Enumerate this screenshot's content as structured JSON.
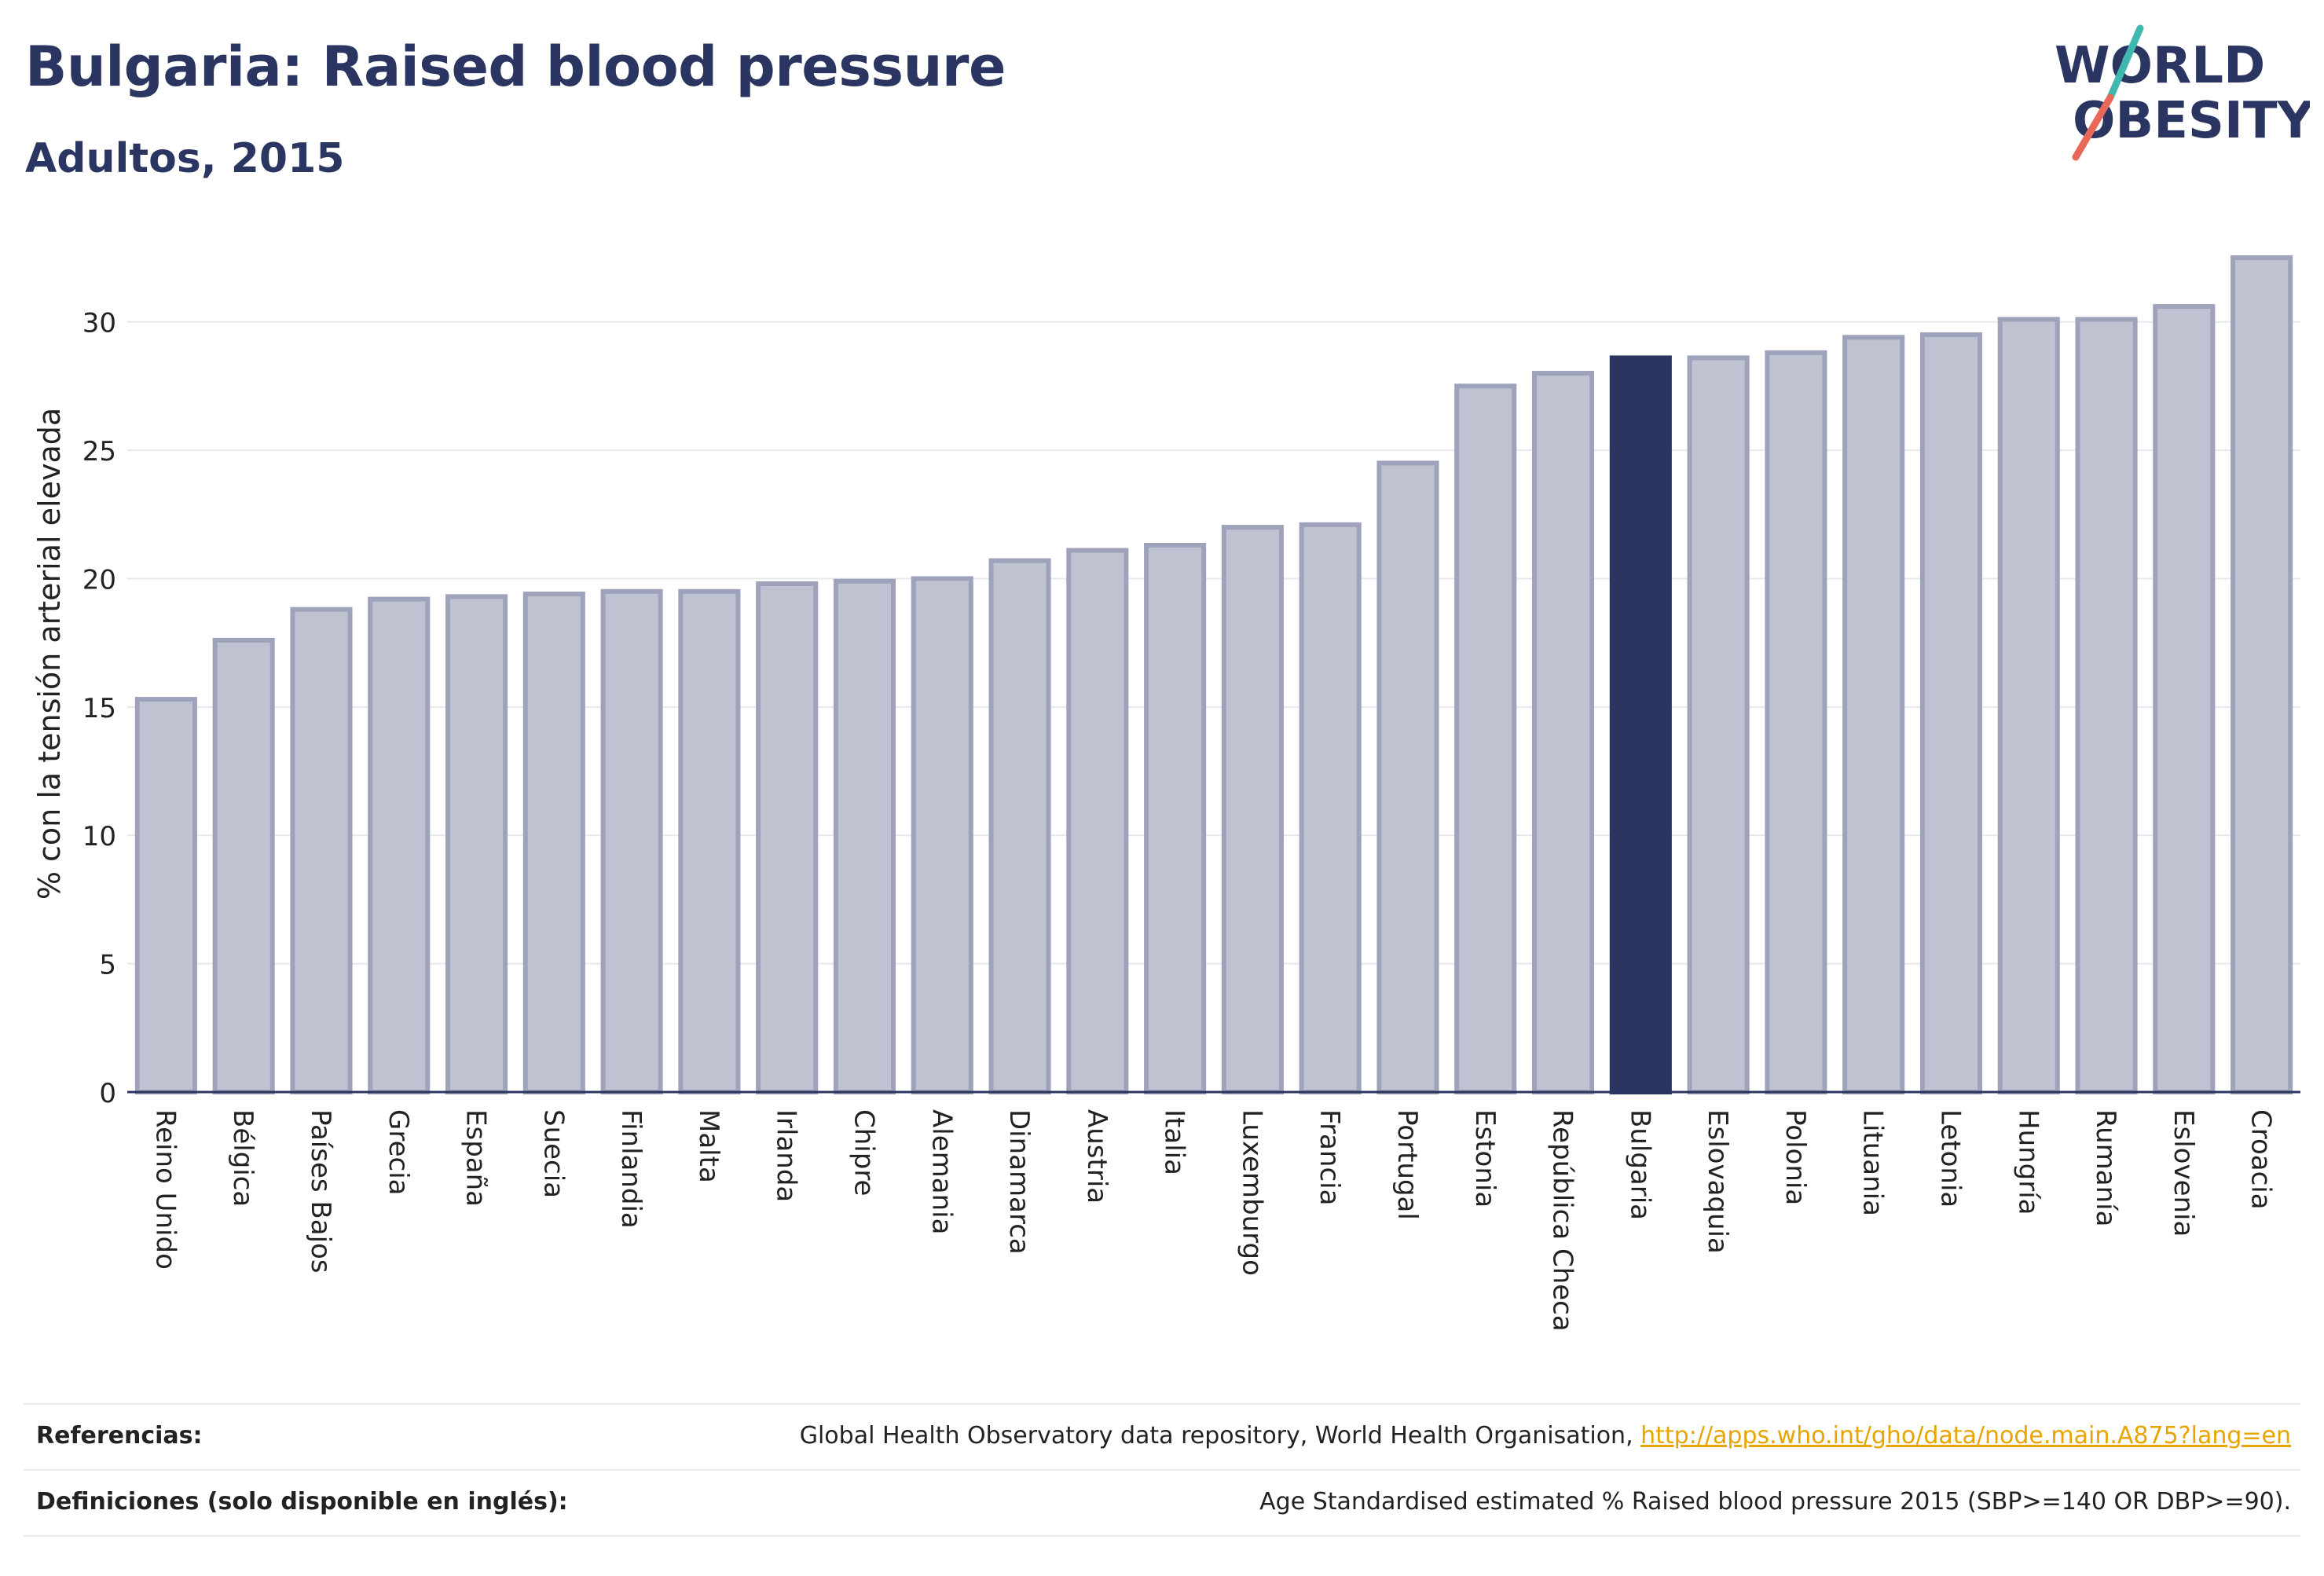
{
  "header": {
    "title": "Bulgaria: Raised blood pressure",
    "subtitle": "Adultos, 2015"
  },
  "logo": {
    "line1": "WORLD",
    "line2": "OBESITY",
    "colors": {
      "text": "#2b3561",
      "slash_top": "#3fb8b0",
      "slash_bottom": "#e8685a"
    }
  },
  "colors": {
    "bar_fill": "#bfc2d0",
    "bar_stroke": "#9ea3bb",
    "highlight_fill": "#2b3561",
    "grid": "#e6e8ee",
    "axis": "#2b3561"
  },
  "chart_data": {
    "type": "bar",
    "ylabel": "% con la tensión arterial elevada",
    "ylim": [
      0,
      32.5
    ],
    "yticks": [
      0,
      5,
      10,
      15,
      20,
      25,
      30
    ],
    "grid": true,
    "highlight": "Bulgaria",
    "categories": [
      "Reino Unido",
      "Bélgica",
      "Países Bajos",
      "Grecia",
      "España",
      "Suecia",
      "Finlandia",
      "Malta",
      "Irlanda",
      "Chipre",
      "Alemania",
      "Dinamarca",
      "Austria",
      "Italia",
      "Luxemburgo",
      "Francia",
      "Portugal",
      "Estonia",
      "República Checa",
      "Bulgaria",
      "Eslovaquia",
      "Polonia",
      "Lituania",
      "Letonia",
      "Hungría",
      "Rumanía",
      "Eslovenia",
      "Croacia"
    ],
    "values": [
      15.3,
      17.6,
      18.8,
      19.2,
      19.3,
      19.4,
      19.5,
      19.5,
      19.8,
      19.9,
      20.0,
      20.7,
      21.1,
      21.3,
      22.0,
      22.1,
      24.5,
      27.5,
      28.0,
      28.6,
      28.6,
      28.8,
      29.4,
      29.5,
      30.1,
      30.1,
      30.6,
      32.5
    ]
  },
  "footer": {
    "references_label": "Referencias:",
    "references_text": "Global Health Observatory data repository, World Health Organisation, ",
    "references_link": "http://apps.who.int/gho/data/node.main.A875?lang=en",
    "definitions_label": "Definiciones (solo disponible en inglés):",
    "definitions_text": "Age Standardised estimated % Raised blood pressure 2015 (SBP>=140 OR DBP>=90)."
  }
}
